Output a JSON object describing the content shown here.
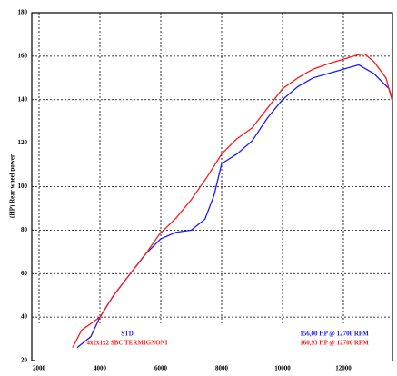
{
  "chart_data": {
    "type": "line",
    "y_label": "(HP)  Rear wheel power",
    "xlim": [
      1761,
      13612
    ],
    "ylim": [
      20,
      180
    ],
    "xticks": [
      2000,
      4000,
      6000,
      8000,
      10000,
      12000
    ],
    "yticks": [
      20,
      40,
      60,
      80,
      100,
      120,
      140,
      160,
      180
    ],
    "grid": true,
    "series": [
      {
        "name": "STD",
        "color": "#1a1aff",
        "summary": "156,00 HP @ 12700 RPM",
        "x": [
          3254,
          3700,
          4000,
          4450,
          5000,
          5500,
          6000,
          6500,
          7000,
          7450,
          7750,
          8000,
          8500,
          9000,
          9500,
          10000,
          10500,
          11000,
          11500,
          12000,
          12500,
          13000,
          13500,
          13612
        ],
        "values": [
          26,
          31,
          40,
          50,
          60,
          69,
          76,
          79,
          80,
          85,
          96,
          110.6,
          115,
          121,
          131.5,
          140,
          146,
          150,
          152,
          154,
          156,
          152,
          145,
          140
        ]
      },
      {
        "name": "4x2x1x2 SBC TERMIGNONI",
        "color": "#ff1a1a",
        "summary": "160,93 HP @ 12700 RPM",
        "x": [
          3104,
          3400,
          4000,
          4450,
          5000,
          5500,
          5950,
          6500,
          7000,
          7500,
          8000,
          8500,
          9000,
          9500,
          10000,
          10500,
          11000,
          11500,
          12000,
          12500,
          12700,
          13000,
          13400,
          13612
        ],
        "values": [
          26,
          34,
          40,
          50,
          60,
          69,
          78,
          85.5,
          94,
          104,
          115,
          122,
          127,
          136,
          145,
          150,
          154,
          156.5,
          158.6,
          160.7,
          161,
          157.5,
          150,
          139
        ]
      }
    ]
  }
}
